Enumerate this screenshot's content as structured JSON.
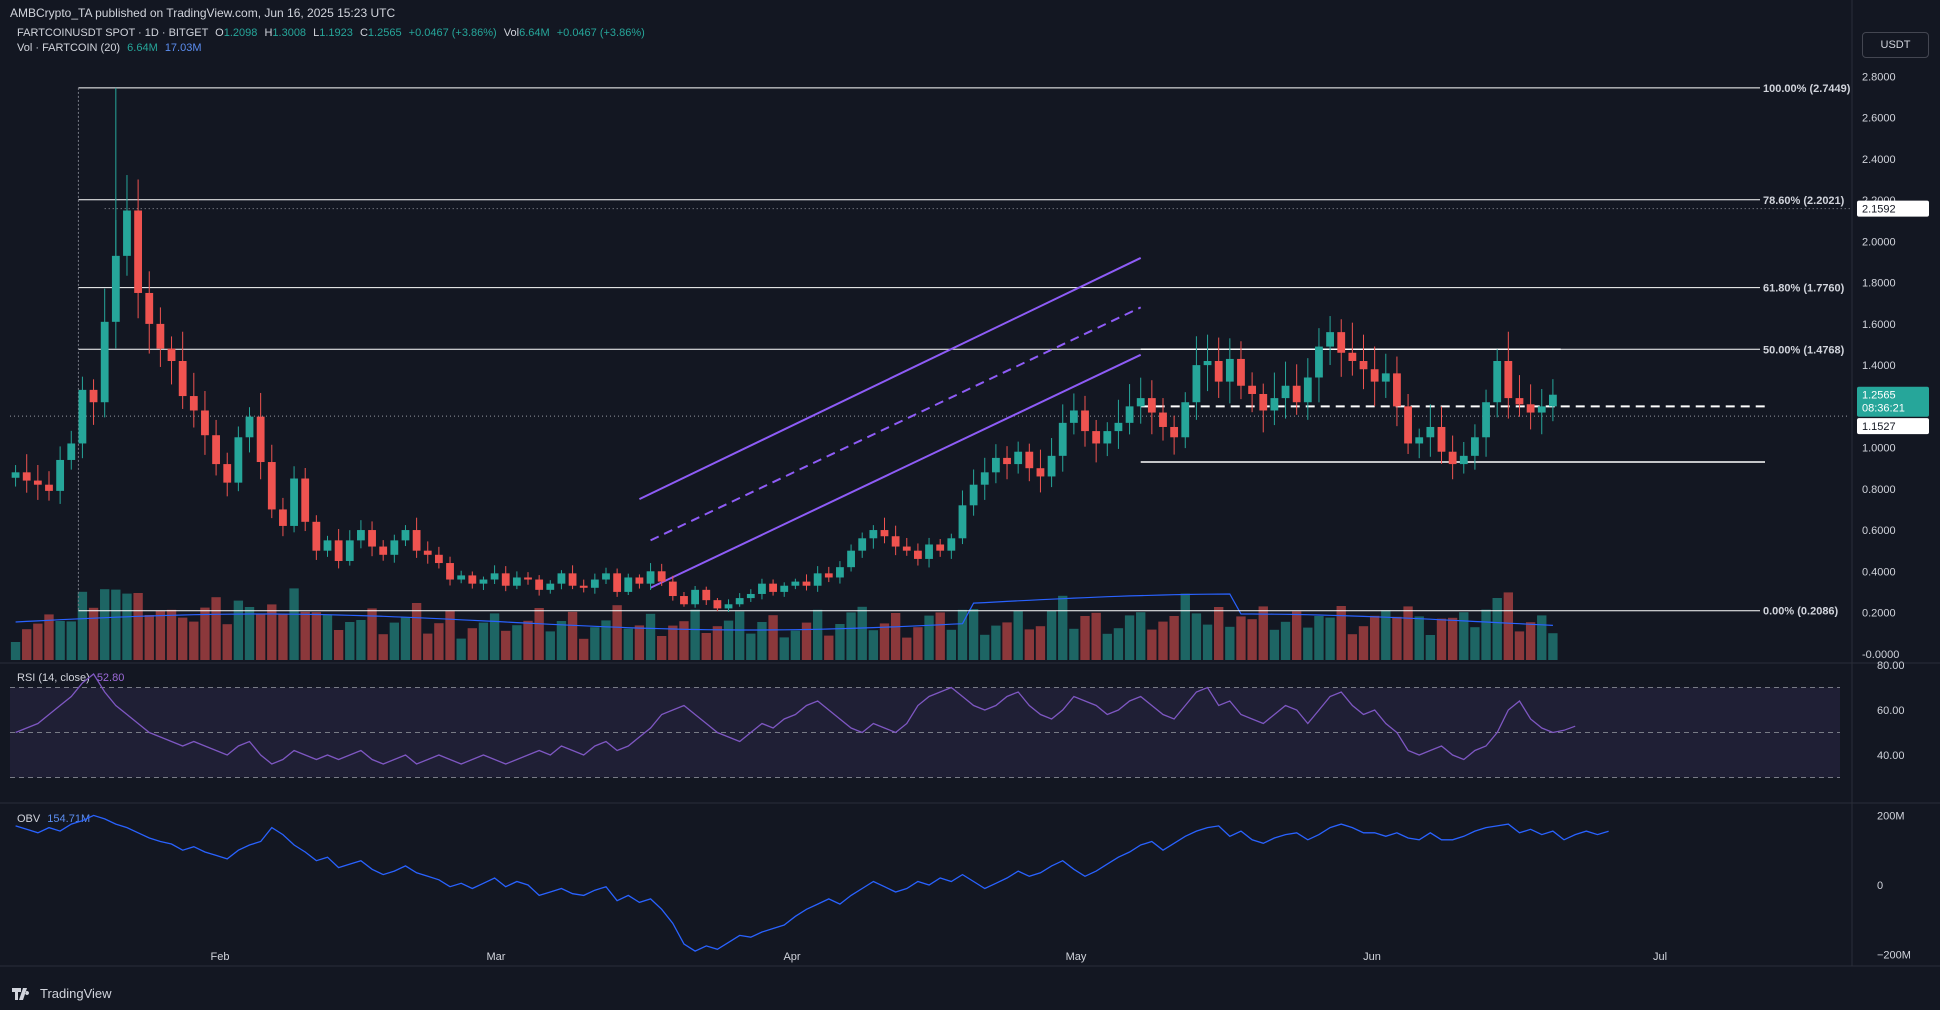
{
  "header": {
    "published": "AMBCrypto_TA published on TradingView.com, Jun 16, 2025 15:23 UTC",
    "symbol": "FARTCOINUSDT SPOT · 1D · BITGET",
    "o_label": "O",
    "o": "1.2098",
    "h_label": "H",
    "h": "1.3008",
    "l_label": "L",
    "l": "1.1923",
    "c_label": "C",
    "c": "1.2565",
    "change": "+0.0467 (+3.86%)",
    "vol_label": "Vol",
    "vol": "6.64M",
    "vol_change": "+0.0467 (+3.86%)",
    "vol_ind": "Vol · FARTCOIN (20)",
    "vol_ind_v1": "6.64M",
    "vol_ind_v2": "17.03M",
    "rsi_label": "RSI (14, close)",
    "rsi_value": "52.80",
    "obv_label": "OBV",
    "obv_value": "154.71M",
    "currency": "USDT",
    "brand": "TradingView"
  },
  "colors": {
    "up": "#26a69a",
    "down": "#ef5350",
    "channel": "#8e5cf7",
    "rsi": "#7e57c2",
    "obv": "#2962ff",
    "fib": "#ffffff"
  },
  "chart_data": [
    {
      "type": "candlestick",
      "title": "FARTCOINUSDT SPOT · 1D · BITGET",
      "x_ticks": [
        "Feb",
        "Mar",
        "Apr",
        "May",
        "Jun",
        "Jul"
      ],
      "y_ticks": [
        "2.8000",
        "2.6000",
        "2.4000",
        "2.2000",
        "2.0000",
        "1.8000",
        "1.6000",
        "1.4000",
        "1.2000",
        "1.0000",
        "0.8000",
        "0.6000",
        "0.4000",
        "0.2000",
        "-0.0000"
      ],
      "ylim": [
        -0.04,
        2.88
      ],
      "current_price": "1.2565",
      "countdown": "08:36:21",
      "marked_price": "1.1527",
      "fib_price_tag": "2.1592",
      "fib_levels": [
        {
          "label": "100.00% (2.7449)",
          "value": 2.7449
        },
        {
          "label": "78.60% (2.2021)",
          "value": 2.2021
        },
        {
          "label": "61.80% (1.7760)",
          "value": 1.776
        },
        {
          "label": "50.00% (1.4768)",
          "value": 1.4768
        },
        {
          "label": "0.00% (0.2086)",
          "value": 0.2086
        }
      ],
      "horizontal_levels": [
        1.2,
        0.93
      ],
      "closes": [
        0.88,
        0.84,
        0.82,
        0.79,
        0.94,
        1.02,
        1.28,
        1.22,
        1.61,
        1.93,
        2.15,
        1.75,
        1.6,
        1.48,
        1.42,
        1.25,
        1.18,
        1.06,
        0.92,
        0.83,
        1.05,
        1.15,
        0.93,
        0.7,
        0.62,
        0.85,
        0.64,
        0.5,
        0.55,
        0.45,
        0.55,
        0.6,
        0.52,
        0.48,
        0.55,
        0.6,
        0.5,
        0.48,
        0.44,
        0.36,
        0.38,
        0.34,
        0.36,
        0.39,
        0.33,
        0.37,
        0.36,
        0.31,
        0.34,
        0.39,
        0.33,
        0.32,
        0.36,
        0.39,
        0.3,
        0.37,
        0.34,
        0.4,
        0.35,
        0.28,
        0.24,
        0.31,
        0.26,
        0.22,
        0.24,
        0.27,
        0.29,
        0.34,
        0.3,
        0.33,
        0.35,
        0.33,
        0.39,
        0.37,
        0.42,
        0.5,
        0.56,
        0.6,
        0.57,
        0.52,
        0.5,
        0.46,
        0.53,
        0.5,
        0.56,
        0.72,
        0.82,
        0.88,
        0.95,
        0.92,
        0.98,
        0.9,
        0.86,
        0.96,
        1.12,
        1.18,
        1.08,
        1.02,
        1.08,
        1.12,
        1.2,
        1.24,
        1.17,
        1.1,
        1.05,
        1.22,
        1.4,
        1.42,
        1.32,
        1.43,
        1.3,
        1.26,
        1.18,
        1.24,
        1.3,
        1.22,
        1.34,
        1.49,
        1.56,
        1.46,
        1.42,
        1.38,
        1.32,
        1.36,
        1.2,
        1.02,
        1.05,
        1.1,
        0.98,
        0.92,
        0.96,
        1.05,
        1.22,
        1.42,
        1.24,
        1.21,
        1.17,
        1.2,
        1.2565
      ],
      "volume_profile": "mixed red/green bars with a 20-period moving average"
    },
    {
      "type": "line",
      "title": "RSI (14, close)",
      "y_ticks": [
        "80.00",
        "60.00",
        "40.00"
      ],
      "ylim": [
        20,
        80
      ],
      "bands": [
        70,
        50,
        30
      ],
      "last": 52.8,
      "values": [
        50,
        52,
        54,
        58,
        62,
        66,
        72,
        76,
        68,
        62,
        58,
        54,
        50,
        48,
        46,
        44,
        46,
        44,
        42,
        40,
        44,
        46,
        40,
        36,
        38,
        42,
        40,
        38,
        40,
        38,
        40,
        42,
        38,
        36,
        38,
        40,
        36,
        38,
        40,
        38,
        36,
        38,
        40,
        38,
        36,
        38,
        40,
        42,
        40,
        44,
        42,
        40,
        44,
        46,
        42,
        44,
        48,
        52,
        58,
        60,
        62,
        58,
        54,
        50,
        48,
        46,
        50,
        54,
        52,
        56,
        58,
        62,
        64,
        60,
        56,
        52,
        50,
        54,
        52,
        50,
        54,
        62,
        66,
        68,
        70,
        66,
        62,
        60,
        62,
        66,
        68,
        62,
        58,
        56,
        60,
        66,
        64,
        62,
        58,
        60,
        64,
        66,
        62,
        58,
        56,
        62,
        68,
        70,
        62,
        64,
        58,
        56,
        54,
        58,
        62,
        60,
        54,
        60,
        66,
        68,
        62,
        58,
        60,
        54,
        50,
        42,
        40,
        42,
        44,
        40,
        38,
        42,
        44,
        50,
        60,
        64,
        56,
        52,
        50,
        51,
        52.8
      ]
    },
    {
      "type": "line",
      "title": "OBV",
      "y_ticks": [
        "200M",
        "0",
        "−200M"
      ],
      "ylim": [
        -230,
        230
      ],
      "last": 154.71,
      "values": [
        170,
        160,
        150,
        165,
        155,
        175,
        185,
        200,
        190,
        175,
        165,
        150,
        135,
        125,
        118,
        100,
        110,
        95,
        85,
        75,
        100,
        115,
        125,
        165,
        145,
        115,
        95,
        70,
        80,
        50,
        60,
        70,
        45,
        30,
        40,
        55,
        35,
        25,
        15,
        -5,
        5,
        -10,
        5,
        20,
        -5,
        10,
        0,
        -30,
        -20,
        -10,
        -25,
        -30,
        -15,
        -5,
        -45,
        -30,
        -50,
        -40,
        -70,
        -110,
        -170,
        -190,
        -175,
        -185,
        -165,
        -145,
        -150,
        -135,
        -125,
        -115,
        -90,
        -70,
        -55,
        -40,
        -55,
        -30,
        -10,
        10,
        -5,
        -20,
        -10,
        10,
        0,
        20,
        10,
        30,
        10,
        -10,
        5,
        20,
        40,
        25,
        35,
        55,
        70,
        45,
        25,
        40,
        60,
        80,
        95,
        115,
        125,
        100,
        120,
        140,
        155,
        165,
        170,
        140,
        155,
        130,
        120,
        135,
        145,
        150,
        130,
        145,
        165,
        175,
        165,
        150,
        150,
        140,
        150,
        135,
        130,
        150,
        130,
        130,
        140,
        155,
        165,
        170,
        175,
        150,
        160,
        145,
        155,
        130,
        145,
        155,
        145,
        154.71
      ]
    }
  ]
}
